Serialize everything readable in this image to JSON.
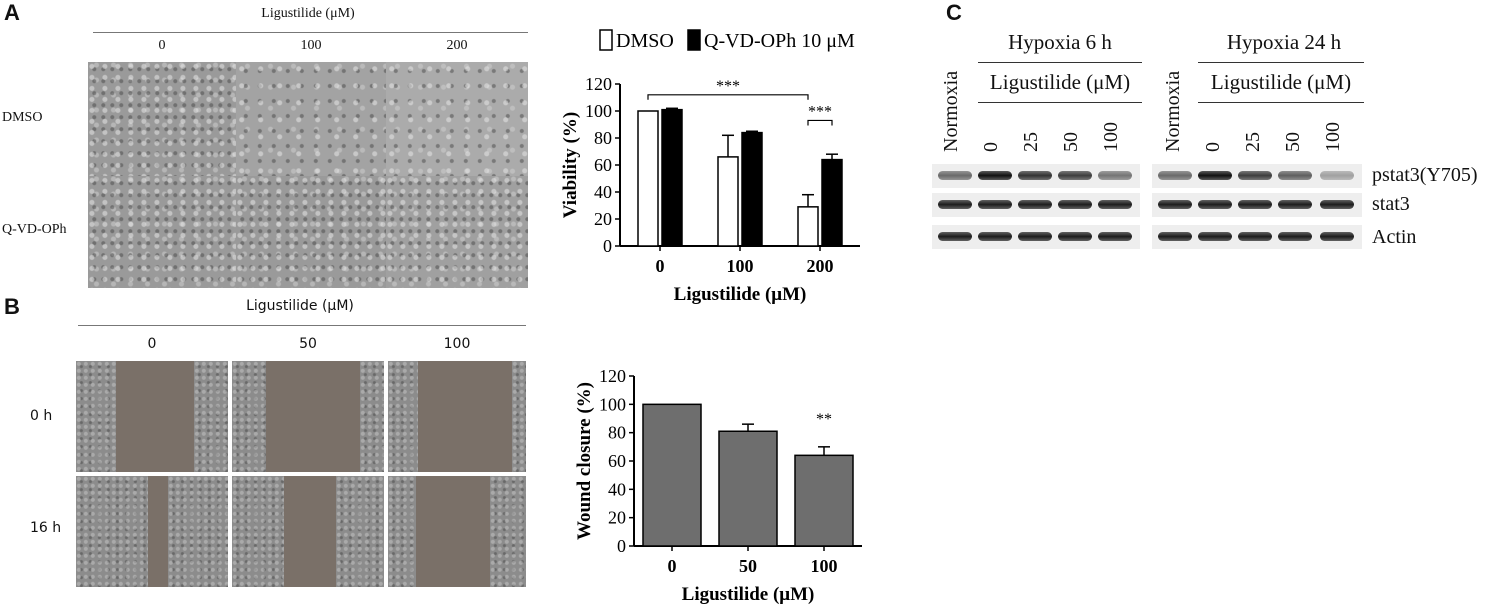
{
  "panel_labels": {
    "a": "A",
    "b": "B",
    "c": "C"
  },
  "panel_a": {
    "header": "Ligustilide (μM)",
    "columns": [
      "0",
      "100",
      "200"
    ],
    "rows": [
      "DMSO",
      "Q-VD-OPh"
    ]
  },
  "panel_b": {
    "header": "Ligustilide (μM)",
    "columns": [
      "0",
      "50",
      "100"
    ],
    "rows": [
      "0 h",
      "16 h"
    ]
  },
  "chart_data": [
    {
      "type": "bar",
      "categories": [
        "0",
        "100",
        "200"
      ],
      "series": [
        {
          "name": "DMSO",
          "values": [
            100,
            66,
            29
          ],
          "errors": [
            0,
            16,
            9
          ],
          "color": "#ffffff"
        },
        {
          "name": "Q-VD-OPh 10 μM",
          "values": [
            101,
            84,
            64
          ],
          "errors": [
            1,
            1,
            4
          ],
          "color": "#000000"
        }
      ],
      "xlabel": "Ligustilide (μM)",
      "ylabel": "Viability (%)",
      "ylim": [
        0,
        120
      ],
      "yticks": [
        "0",
        "20",
        "40",
        "60",
        "80",
        "100",
        "120"
      ],
      "legend_position": "top",
      "annotations": [
        "***",
        "***"
      ]
    },
    {
      "type": "bar",
      "categories": [
        "0",
        "50",
        "100"
      ],
      "series": [
        {
          "values": [
            100,
            81,
            64
          ],
          "errors": [
            0,
            5,
            6
          ],
          "color": "#6e6e6e"
        }
      ],
      "xlabel": "Ligustilide (μM)",
      "ylabel": "Wound closure (%)",
      "ylim": [
        0,
        120
      ],
      "yticks": [
        "0",
        "20",
        "40",
        "60",
        "80",
        "100",
        "120"
      ],
      "annotations": [
        "**"
      ]
    }
  ],
  "panel_c": {
    "group1": "Hypoxia 6 h",
    "group2": "Hypoxia 24 h",
    "sublabel": "Ligustilide (μM)",
    "normoxia": "Normoxia",
    "doses": [
      "0",
      "25",
      "50",
      "100"
    ],
    "bands": [
      "pstat3(Y705)",
      "stat3",
      "Actin"
    ],
    "pstat3_intensity_group1": [
      0.6,
      1.0,
      0.85,
      0.8,
      0.55
    ],
    "pstat3_intensity_group2": [
      0.6,
      1.0,
      0.8,
      0.65,
      0.35
    ]
  }
}
